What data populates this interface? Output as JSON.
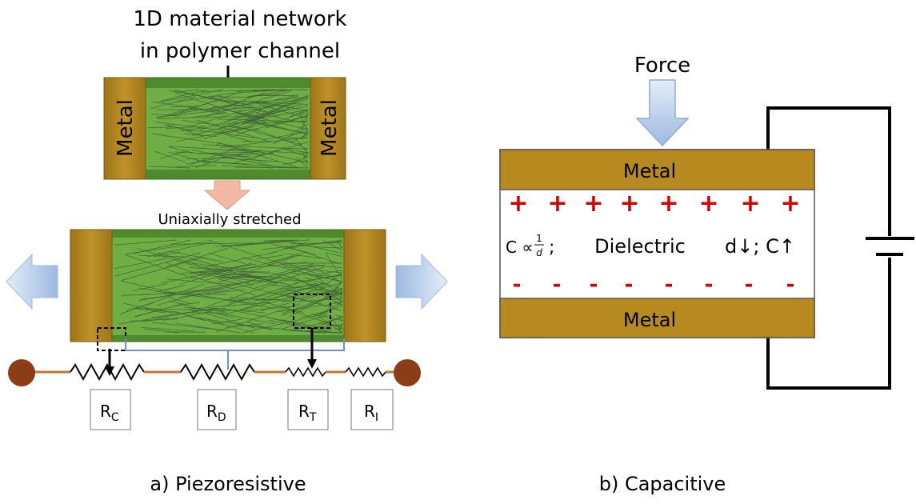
{
  "panel_a": {
    "top_caption_line1": "1D material network",
    "top_caption_line2": "in polymer channel",
    "metal_left": "Metal",
    "metal_right": "Metal",
    "stretch_label": "Uniaxially stretched",
    "resistors": [
      {
        "main": "R",
        "sub": "C"
      },
      {
        "main": "R",
        "sub": "D"
      },
      {
        "main": "R",
        "sub": "T"
      },
      {
        "main": "R",
        "sub": "I"
      }
    ],
    "caption": "a) Piezoresistive"
  },
  "panel_b": {
    "force_label": "Force",
    "metal_top": "Metal",
    "metal_bottom": "Metal",
    "plus_sign": "+",
    "minus_sign": "-",
    "formula_prefix": "C ∝ ",
    "formula_num": "1",
    "formula_den": "d",
    "formula_suffix": ";",
    "dielectric_label": "Dielectric",
    "relation": "d↓; C↑",
    "caption": "b) Capacitive"
  },
  "colors": {
    "metal": "#b68a1f",
    "metal_dark": "#8d6a14",
    "channel_green": "#5d9c3a",
    "wire_orange": "#c87533",
    "node_brown": "#8b3e16",
    "minus_red": "#d40000",
    "arrow_blue": "#bcd2ee",
    "arrow_salmon": "#f2b9a4"
  }
}
